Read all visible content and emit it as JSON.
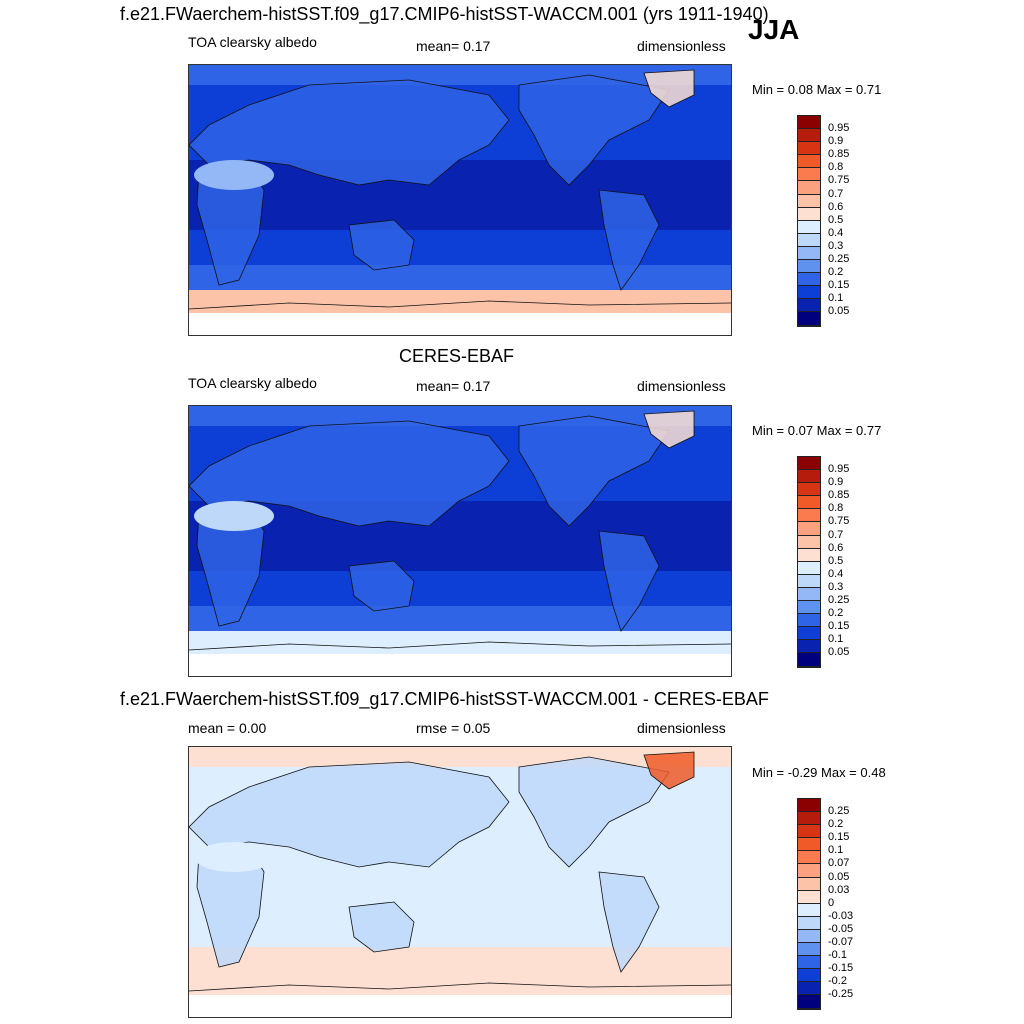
{
  "figure": {
    "season": "JJA"
  },
  "panels": [
    {
      "title": "f.e21.FWaerchem-histSST.f09_g17.CMIP6-histSST-WACCM.001 (yrs 1911-1940)",
      "left_label": "TOA clearsky albedo",
      "center_label": "mean=   0.17",
      "right_label": "dimensionless",
      "minmax": "Min =   0.08 Max =   0.71",
      "colorbar": {
        "ticks": [
          "0.95",
          "0.9",
          "0.85",
          "0.8",
          "0.75",
          "0.7",
          "0.6",
          "0.5",
          "0.4",
          "0.3",
          "0.25",
          "0.2",
          "0.15",
          "0.1",
          "0.05"
        ],
        "colors": [
          "#8b0000",
          "#b51c0c",
          "#d63412",
          "#f05a28",
          "#fb7b4f",
          "#fca17f",
          "#fcc3a8",
          "#fde0d2",
          "#dceeff",
          "#bed8fa",
          "#94b8f5",
          "#5f91ee",
          "#2f64e6",
          "#0d3fd6",
          "#0a22b0",
          "#00007f"
        ]
      },
      "map_fill": {
        "high_lat_south": "#fcc3a8",
        "antarctic": "#ffffff",
        "tropics": "#0a22b0",
        "midlat": "#0d3fd6",
        "subpolar": "#2f64e6",
        "greenland": "#fde0d2",
        "sahara": "#94b8f5",
        "land": "#2f64e6"
      }
    },
    {
      "title": "CERES-EBAF",
      "left_label": "TOA clearsky albedo",
      "center_label": "mean=   0.17",
      "right_label": "dimensionless",
      "minmax": "Min =   0.07 Max =   0.77",
      "colorbar": {
        "ticks": [
          "0.95",
          "0.9",
          "0.85",
          "0.8",
          "0.75",
          "0.7",
          "0.6",
          "0.5",
          "0.4",
          "0.3",
          "0.25",
          "0.2",
          "0.15",
          "0.1",
          "0.05"
        ],
        "colors": [
          "#8b0000",
          "#b51c0c",
          "#d63412",
          "#f05a28",
          "#fb7b4f",
          "#fca17f",
          "#fcc3a8",
          "#fde0d2",
          "#dceeff",
          "#bed8fa",
          "#94b8f5",
          "#5f91ee",
          "#2f64e6",
          "#0d3fd6",
          "#0a22b0",
          "#00007f"
        ]
      },
      "map_fill": {
        "high_lat_south": "#dceeff",
        "antarctic": "#ffffff",
        "tropics": "#0a22b0",
        "midlat": "#0d3fd6",
        "subpolar": "#2f64e6",
        "greenland": "#fde0d2",
        "sahara": "#bed8fa",
        "land": "#2f64e6"
      }
    },
    {
      "title": "f.e21.FWaerchem-histSST.f09_g17.CMIP6-histSST-WACCM.001 - CERES-EBAF",
      "left_label": "mean =   0.00",
      "center_label": "rmse =   0.05",
      "right_label": "dimensionless",
      "minmax": "Min =  -0.29 Max =   0.48",
      "colorbar": {
        "ticks": [
          "0.25",
          "0.2",
          "0.15",
          "0.1",
          "0.07",
          "0.05",
          "0.03",
          "0",
          "-0.03",
          "-0.05",
          "-0.07",
          "-0.1",
          "-0.15",
          "-0.2",
          "-0.25"
        ],
        "colors": [
          "#8b0000",
          "#b51c0c",
          "#d63412",
          "#f05a28",
          "#fb7b4f",
          "#fca17f",
          "#fcc3a8",
          "#fde0d2",
          "#dceeff",
          "#bed8fa",
          "#94b8f5",
          "#5f91ee",
          "#2f64e6",
          "#0d3fd6",
          "#0a22b0",
          "#00007f"
        ]
      },
      "map_fill": {
        "high_lat_south": "#fde0d2",
        "antarctic": "#ffffff",
        "tropics": "#dceeff",
        "midlat": "#dceeff",
        "subpolar": "#fde0d2",
        "greenland": "#f05a28",
        "sahara": "#dceeff",
        "land": "#bed8fa"
      }
    }
  ]
}
